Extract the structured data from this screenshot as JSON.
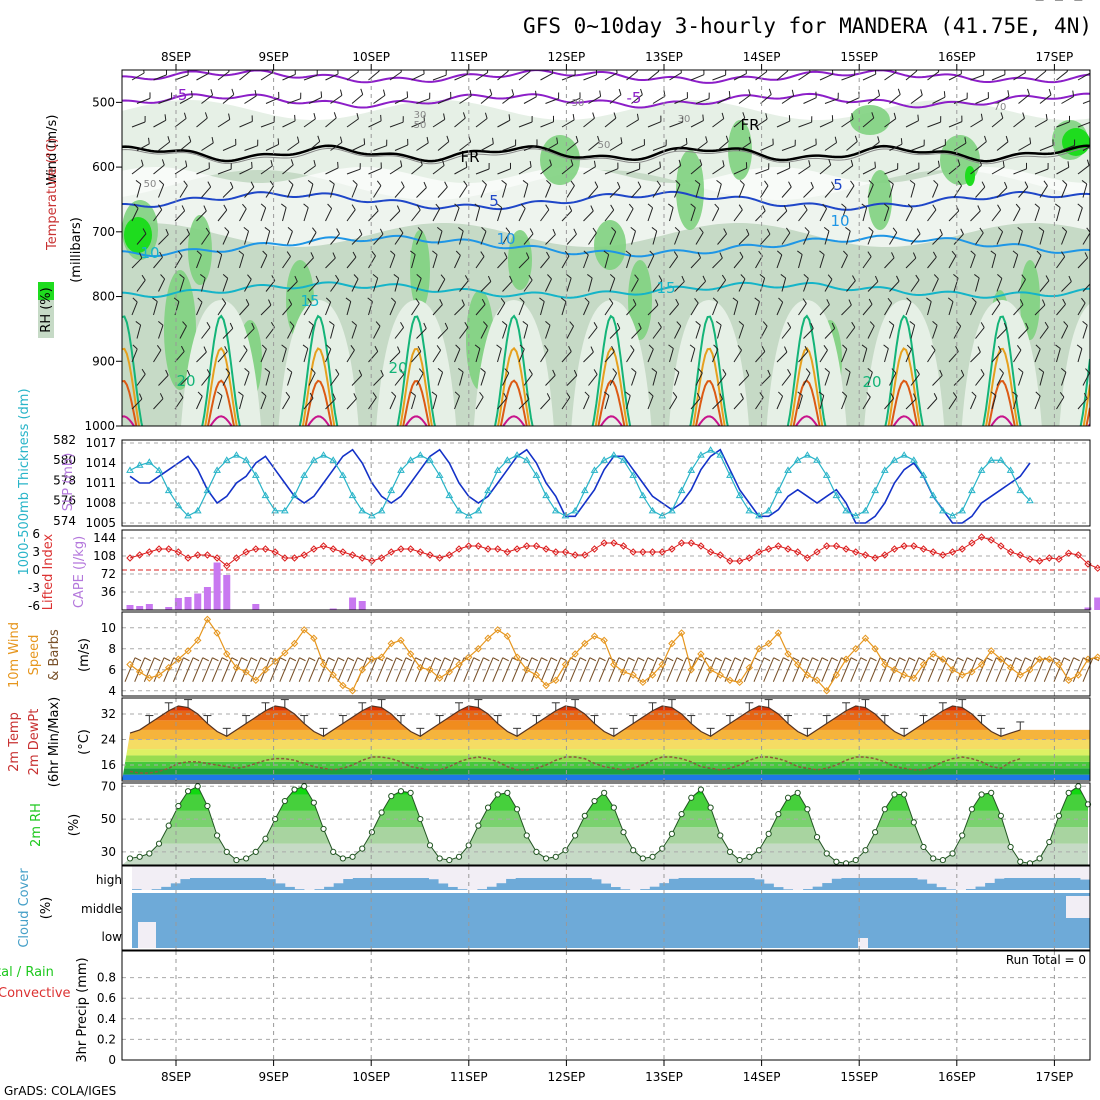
{
  "header": {
    "title": "GFS 0~10day 3-hourly for MANDERA (41.75E, 4N)",
    "credit": "GrADS: COLA/IGES"
  },
  "colors": {
    "rh_light": "#e6f0e6",
    "rh_mid": "#c6dac6",
    "rh_green": "#7fd17f",
    "rh_bright": "#1edc1e",
    "rh_top": "#ffffff",
    "freezing": "#000000",
    "t5": "#1e46c8",
    "t10": "#1e96e6",
    "t15": "#14b4c8",
    "t20": "#14b478",
    "t25": "#e6a01e",
    "t30": "#dc5a14",
    "t35": "#c8148c",
    "t_minus5": "#8c1ec8",
    "slp": "#1432c8",
    "thickness": "#28b4c8",
    "lifted": "#dc1e1e",
    "cape": "#c878f0",
    "wind": "#e6961e",
    "barb": "#785028",
    "cloud": "#6eaad8",
    "rh2m": "#1ec81e",
    "temp_top": "#dc3200"
  },
  "chart_data": [
    {
      "id": "upper",
      "type": "heatmap",
      "ylabel": "(millibars)",
      "label_wind": "Wind (m/s)",
      "label_temp": "Temperature (°C)",
      "label_rh": "RH (%)",
      "ylim": [
        1000,
        450
      ],
      "yticks": [
        500,
        600,
        700,
        800,
        900,
        1000
      ],
      "isotherm_labels": [
        "-5",
        "-5",
        "FR",
        "FR",
        "5",
        "5",
        "10",
        "10",
        "10",
        "15",
        "15",
        "20",
        "20",
        "20",
        "50",
        "50",
        "50",
        "30",
        "30",
        "30",
        "70"
      ]
    },
    {
      "id": "slp_thickness",
      "type": "line",
      "ylabel_left": "1000-500mb Thickness (dm)",
      "ylabel_right": "SLP (mb)",
      "thickness_ticks": [
        574,
        576,
        578,
        580,
        582
      ],
      "slp_ticks": [
        1005,
        1008,
        1011,
        1014,
        1017
      ],
      "slp_range": [
        1005,
        1017
      ],
      "slp": [
        1012,
        1011,
        1011,
        1012,
        1013,
        1014,
        1015,
        1013,
        1010,
        1008,
        1009,
        1011,
        1012,
        1014,
        1015,
        1013,
        1011,
        1009,
        1008,
        1009,
        1011,
        1013,
        1015,
        1016,
        1014,
        1011,
        1009,
        1008,
        1009,
        1011,
        1013,
        1015,
        1016,
        1014,
        1011,
        1009,
        1008,
        1009,
        1011,
        1013,
        1015,
        1016,
        1014,
        1011,
        1009,
        1006,
        1006,
        1008,
        1010,
        1013,
        1015,
        1015,
        1013,
        1011,
        1009,
        1008,
        1007,
        1008,
        1010,
        1013,
        1015,
        1016,
        1013,
        1010,
        1008,
        1006,
        1006,
        1007,
        1009,
        1010,
        1009,
        1008,
        1009,
        1010,
        1008,
        1005,
        1005,
        1006,
        1008,
        1011,
        1013,
        1014,
        1012,
        1009,
        1007,
        1005,
        1005,
        1006,
        1008,
        1009,
        1010,
        1011,
        1012,
        1014
      ],
      "thickness": [
        579,
        579.5,
        579.8,
        579,
        577,
        575.5,
        574.5,
        575,
        577,
        579,
        580,
        580.5,
        580,
        578.5,
        576.5,
        575,
        575,
        576.5,
        578.5,
        580,
        580.5,
        580,
        578.5,
        576.5,
        575,
        574.5,
        575,
        577,
        579,
        580,
        580.5,
        580,
        578.5,
        576.5,
        575,
        574.5,
        575,
        577,
        579,
        580,
        580.5,
        580,
        578.5,
        576.5,
        575,
        574.5,
        575,
        577,
        579,
        580,
        580.5,
        580,
        578.5,
        576.5,
        575,
        574.5,
        575,
        577,
        579,
        580.5,
        581,
        580.5,
        578.5,
        576.5,
        575,
        574.5,
        575,
        577,
        579,
        580,
        580.5,
        580,
        578.5,
        576.5,
        575,
        574.5,
        575,
        577,
        579,
        580,
        580.5,
        580,
        578.5,
        576.5,
        575,
        574.5,
        575,
        577,
        579,
        580,
        580,
        579,
        577,
        576
      ],
      "thickness_range": [
        573.5,
        582
      ]
    },
    {
      "id": "cape_lifted",
      "type": "bar",
      "ylabel_left": "Lifted Index",
      "ylabel_right": "CAPE (J/kg)",
      "li_ticks": [
        "6",
        "3",
        "0",
        "-3",
        "-6"
      ],
      "li_range": [
        6,
        -6
      ],
      "cape_ticks": [
        36,
        72,
        108,
        144
      ],
      "cape_range": [
        0,
        144
      ],
      "cape": [
        10,
        8,
        12,
        0,
        6,
        24,
        26,
        33,
        46,
        95,
        70,
        0,
        0,
        12,
        0,
        0,
        0,
        0,
        0,
        0,
        0,
        3,
        0,
        25,
        18,
        0,
        0,
        0,
        0,
        0,
        0,
        0,
        0,
        0,
        0,
        0,
        0,
        0,
        0,
        0,
        0,
        0,
        0,
        0,
        0,
        0,
        0,
        0,
        0,
        0,
        0,
        0,
        0,
        0,
        0,
        0,
        0,
        0,
        0,
        0,
        0,
        0,
        0,
        0,
        0,
        0,
        0,
        0,
        0,
        0,
        0,
        0,
        0,
        0,
        0,
        0,
        0,
        0,
        0,
        0,
        0,
        0,
        0,
        0,
        0,
        0,
        0,
        0,
        0,
        0,
        0,
        0,
        0,
        0,
        0,
        0,
        0,
        0,
        0,
        5,
        25,
        46
      ],
      "lifted": [
        2,
        2.5,
        3,
        3.5,
        3.5,
        3,
        2,
        2.5,
        2.5,
        2,
        0.7,
        2,
        3,
        3.5,
        3.5,
        3,
        2,
        2,
        2.5,
        3.5,
        4,
        3.5,
        3,
        2.5,
        2,
        1.5,
        2,
        3,
        3.5,
        3.5,
        3,
        2.5,
        2,
        2.5,
        3.5,
        4,
        4,
        3.5,
        3.5,
        3,
        3.5,
        4,
        4,
        3.5,
        3,
        3,
        2.5,
        2.5,
        3.5,
        4.5,
        4.5,
        4,
        3,
        3,
        3,
        3,
        3.5,
        4.5,
        4.5,
        4,
        3,
        2.5,
        1.5,
        1.5,
        2,
        3,
        3.5,
        4,
        3.5,
        3,
        2,
        3,
        4,
        4,
        3.5,
        3,
        2.5,
        2,
        2.5,
        3.5,
        4,
        4,
        3.5,
        3,
        2.5,
        3,
        3.5,
        4.5,
        5.5,
        5,
        4,
        3,
        2.5,
        1.8,
        1.5,
        2,
        1.8,
        2.8,
        2.5,
        1,
        0.3,
        1
      ],
      "lifted_ref": 0
    },
    {
      "id": "wind10m",
      "type": "line",
      "ylabel": "10m Wind Speed & Barbs (m/s)",
      "ylabel_line1": "10m Wind",
      "ylabel_line2": "Speed",
      "ylabel_line3": "& Barbs",
      "ylabel_units": "(m/s)",
      "yticks": [
        4,
        6,
        8,
        10
      ],
      "ylim": [
        3.5,
        11.5
      ],
      "speed": [
        6.5,
        5.8,
        5.2,
        5.5,
        6.2,
        7.0,
        7.8,
        8.8,
        10.8,
        9.5,
        7.5,
        6.2,
        5.8,
        5.0,
        6.0,
        6.8,
        7.6,
        8.5,
        9.8,
        9.0,
        6.5,
        5.5,
        4.5,
        4.0,
        6.0,
        7.0,
        7.2,
        8.5,
        8.8,
        7.5,
        6.2,
        6.0,
        5.2,
        5.8,
        6.5,
        7.2,
        8.0,
        9.0,
        9.8,
        9.2,
        7.2,
        6.0,
        5.5,
        4.5,
        5.0,
        6.5,
        7.5,
        8.5,
        9.2,
        8.8,
        6.5,
        5.8,
        5.5,
        4.8,
        5.5,
        6.5,
        8.5,
        9.5,
        6.0,
        7.5,
        6.0,
        5.5,
        5.0,
        4.8,
        6.2,
        8.0,
        8.5,
        9.5,
        7.5,
        6.5,
        5.5,
        5.0,
        4.0,
        5.5,
        7.0,
        8.0,
        9.0,
        8.0,
        6.5,
        6.0,
        5.5,
        5.2,
        6.5,
        7.5,
        7.0,
        6.0,
        5.5,
        5.8,
        6.5,
        7.8,
        7.0,
        6.2,
        5.5,
        6.0,
        7.0,
        7.0,
        6.5,
        5.0,
        5.5,
        7.0,
        7.2,
        6.5
      ]
    },
    {
      "id": "temp2m",
      "type": "area",
      "ylabel_line1": "2m Temp",
      "ylabel_line2": "2m DewPt",
      "ylabel_line3": "(6hr Min/Max)",
      "ylabel_units": "(°C)",
      "yticks": [
        16,
        24,
        32
      ],
      "ylim": [
        11,
        37
      ],
      "temp": [
        26,
        27,
        29,
        31,
        33,
        34.5,
        34,
        32,
        29,
        26.5,
        25,
        27,
        29,
        31,
        33,
        34.5,
        34,
        32,
        29,
        26.5,
        25,
        27,
        29,
        31,
        33,
        34.5,
        34,
        32,
        29,
        26.5,
        25,
        27,
        29,
        31,
        33,
        34.5,
        34,
        32,
        29,
        26.5,
        25,
        27,
        29,
        31,
        33,
        34.5,
        34,
        32,
        29,
        26.5,
        25,
        27,
        29,
        31,
        33,
        34.5,
        34,
        32,
        29,
        26.5,
        25,
        27,
        29,
        31,
        33,
        34.5,
        34,
        32,
        29,
        26.5,
        25,
        27,
        29,
        31,
        33,
        34.5,
        34,
        32,
        29,
        26.5,
        25,
        27,
        29,
        31,
        33,
        34.5,
        34,
        32,
        29,
        26.5,
        25,
        26,
        27
      ],
      "dewpt": [
        14,
        13.5,
        13.5,
        14,
        15,
        16.5,
        17,
        17,
        16.5,
        16,
        15.5,
        15,
        15.5,
        16.5,
        17.5,
        18,
        18,
        17.5,
        16.5,
        15.5,
        15,
        14.5,
        15,
        16,
        17.5,
        18.5,
        18.5,
        18,
        17,
        15.5,
        15,
        14.5,
        14.5,
        15.5,
        17,
        18,
        18.5,
        18,
        17,
        15.5,
        14.5,
        14.5,
        15,
        16,
        17.5,
        18.5,
        18.5,
        18,
        16.5,
        15.5,
        15,
        14.5,
        15,
        16,
        17.5,
        18.5,
        18.5,
        18,
        17,
        15.5,
        15,
        14.5,
        15,
        16,
        17.5,
        18.5,
        18.5,
        18,
        17,
        15.5,
        15,
        14.5,
        15,
        16,
        17.5,
        18.5,
        18.5,
        18,
        17,
        15.5,
        15,
        14.5,
        14.5,
        15.5,
        17,
        18,
        18.5,
        18,
        17,
        15.5,
        15,
        17,
        18
      ]
    },
    {
      "id": "rh2m",
      "type": "area",
      "ylabel": "2m RH",
      "ylabel_units": "(%)",
      "yticks": [
        30,
        50,
        70
      ],
      "ylim": [
        22,
        72
      ],
      "rh": [
        26,
        27,
        29,
        35,
        46,
        58,
        67,
        70,
        58,
        40,
        30,
        25,
        26,
        30,
        38,
        50,
        61,
        68,
        70,
        60,
        44,
        30,
        26,
        27,
        32,
        42,
        54,
        64,
        67,
        66,
        50,
        34,
        26,
        25,
        27,
        34,
        46,
        57,
        65,
        66,
        56,
        40,
        30,
        26,
        27,
        31,
        40,
        52,
        61,
        66,
        57,
        42,
        31,
        26,
        27,
        32,
        41,
        53,
        63,
        68,
        57,
        40,
        30,
        25,
        27,
        31,
        41,
        53,
        63,
        66,
        56,
        39,
        29,
        24,
        23,
        25,
        31,
        42,
        56,
        65,
        65,
        48,
        33,
        26,
        25,
        29,
        40,
        56,
        65,
        66,
        52,
        33,
        24,
        23,
        26,
        36,
        52,
        66,
        70,
        59
      ]
    },
    {
      "id": "cloud",
      "type": "bar",
      "ylabel": "Cloud Cover",
      "ylabel_units": "(%)",
      "levels": [
        "high",
        "middle",
        "low"
      ]
    },
    {
      "id": "precip",
      "type": "bar",
      "ylabel_line1": "3hr Precip (mm)",
      "legend_line1": "tal / Rain",
      "legend_line2": "Convective",
      "run_total_label": "Run Total = 0",
      "yticks": [
        "0",
        "0.2",
        "0.4",
        "0.6",
        "0.8"
      ],
      "ylim": [
        0,
        1.0
      ],
      "values": []
    }
  ],
  "xaxis": {
    "dates": [
      "8SEP",
      "9SEP",
      "10SEP",
      "11SEP",
      "12SEP",
      "13SEP",
      "14SEP",
      "15SEP",
      "16SEP",
      "17SEP"
    ]
  }
}
